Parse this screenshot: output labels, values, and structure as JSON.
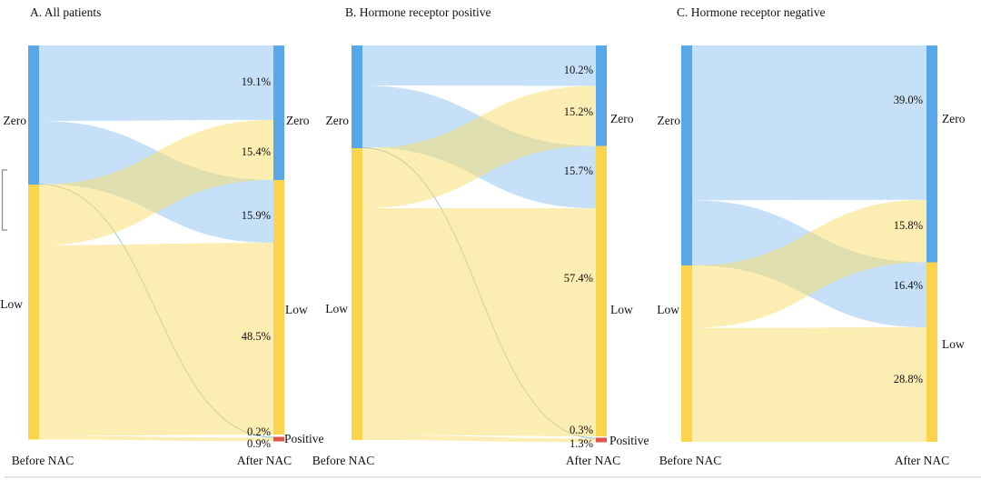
{
  "colors": {
    "node_zero": "#58a7e9",
    "node_low": "#f9d44c",
    "node_positive": "#e0544c",
    "flow_blue": "rgba(116,182,236,0.42)",
    "flow_yellow": "rgba(249,220,104,0.50)",
    "thin_flow_line": "rgba(125,185,200,0.55)"
  },
  "chart_data": [
    {
      "type": "sankey",
      "title": "A. All patients",
      "x_labels": [
        "Before NAC",
        "After NAC"
      ],
      "left_labels": [
        "Zero",
        "Low"
      ],
      "right_labels": [
        "Zero",
        "Low",
        "Positive"
      ],
      "flows": [
        {
          "from": "Zero",
          "to": "Zero",
          "percent": 19.1,
          "label": "19.1%"
        },
        {
          "from": "Low",
          "to": "Zero",
          "percent": 15.4,
          "label": "15.4%"
        },
        {
          "from": "Zero",
          "to": "Low",
          "percent": 15.9,
          "label": "15.9%"
        },
        {
          "from": "Low",
          "to": "Low",
          "percent": 48.5,
          "label": "48.5%"
        },
        {
          "from": "Zero",
          "to": "Positive",
          "percent": 0.2,
          "label": "0.2%"
        },
        {
          "from": "Low",
          "to": "Positive",
          "percent": 0.9,
          "label": "0.9%"
        }
      ]
    },
    {
      "type": "sankey",
      "title": "B. Hormone receptor positive",
      "x_labels": [
        "Before NAC",
        "After NAC"
      ],
      "left_labels": [
        "Zero",
        "Low"
      ],
      "right_labels": [
        "Zero",
        "Low",
        "Positive"
      ],
      "flows": [
        {
          "from": "Zero",
          "to": "Zero",
          "percent": 10.2,
          "label": "10.2%"
        },
        {
          "from": "Low",
          "to": "Zero",
          "percent": 15.2,
          "label": "15.2%"
        },
        {
          "from": "Zero",
          "to": "Low",
          "percent": 15.7,
          "label": "15.7%"
        },
        {
          "from": "Low",
          "to": "Low",
          "percent": 57.4,
          "label": "57.4%"
        },
        {
          "from": "Zero",
          "to": "Positive",
          "percent": 0.3,
          "label": "0.3%"
        },
        {
          "from": "Low",
          "to": "Positive",
          "percent": 1.3,
          "label": "1.3%"
        }
      ]
    },
    {
      "type": "sankey",
      "title": "C. Hormone receptor negative",
      "x_labels": [
        "Before NAC",
        "After NAC"
      ],
      "left_labels": [
        "Zero",
        "Low"
      ],
      "right_labels": [
        "Zero",
        "Low"
      ],
      "flows": [
        {
          "from": "Zero",
          "to": "Zero",
          "percent": 39.0,
          "label": "39.0%"
        },
        {
          "from": "Low",
          "to": "Zero",
          "percent": 15.8,
          "label": "15.8%"
        },
        {
          "from": "Zero",
          "to": "Low",
          "percent": 16.4,
          "label": "16.4%"
        },
        {
          "from": "Low",
          "to": "Low",
          "percent": 28.8,
          "label": "28.8%"
        }
      ]
    }
  ]
}
